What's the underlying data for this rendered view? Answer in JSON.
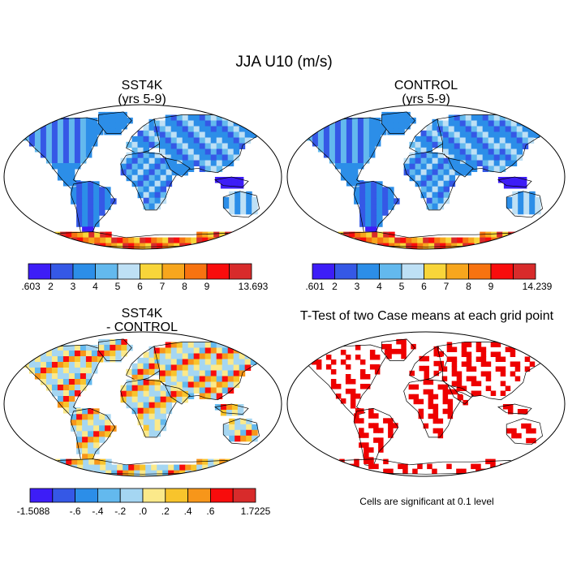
{
  "title": "JJA U10 (m/s)",
  "panels": [
    {
      "id": "sst4k",
      "title_line1": "SST4K",
      "title_line2": "(yrs 5-9)",
      "colorbar": {
        "colors": [
          "#3d1df7",
          "#3558e6",
          "#2c8ee8",
          "#63b9ee",
          "#bee0f5",
          "#f8d53a",
          "#f7a61d",
          "#f77310",
          "#f90d0d",
          "#d82b2b"
        ],
        "labels": [
          ".603",
          "2",
          "3",
          "4",
          "5",
          "6",
          "7",
          "8",
          "9",
          "13.693"
        ]
      }
    },
    {
      "id": "control",
      "title_line1": "CONTROL",
      "title_line2": "(yrs 5-9)",
      "colorbar": {
        "colors": [
          "#3d1df7",
          "#3558e6",
          "#2c8ee8",
          "#63b9ee",
          "#bee0f5",
          "#f8d53a",
          "#f7a61d",
          "#f77310",
          "#f90d0d",
          "#d82b2b"
        ],
        "labels": [
          ".601",
          "2",
          "3",
          "4",
          "5",
          "6",
          "7",
          "8",
          "9",
          "14.239"
        ]
      }
    },
    {
      "id": "difference",
      "title_line1": "SST4K",
      "title_line2": "- CONTROL",
      "colorbar": {
        "colors": [
          "#3d1df7",
          "#3558e6",
          "#2c8ee8",
          "#63b9ee",
          "#a5d6f2",
          "#fbe98a",
          "#f8c42c",
          "#f7961a",
          "#f80c0c",
          "#d82b2b"
        ],
        "labels": [
          "-1.5088",
          "-.6",
          "-.4",
          "-.2",
          ".0",
          ".2",
          ".4",
          ".6",
          "1.7225"
        ]
      }
    },
    {
      "id": "ttest",
      "title_line1": "T-Test of two Case means at each grid point",
      "note": "Cells are significant at 0.1 level",
      "significant_color": "#ee0000"
    }
  ]
}
